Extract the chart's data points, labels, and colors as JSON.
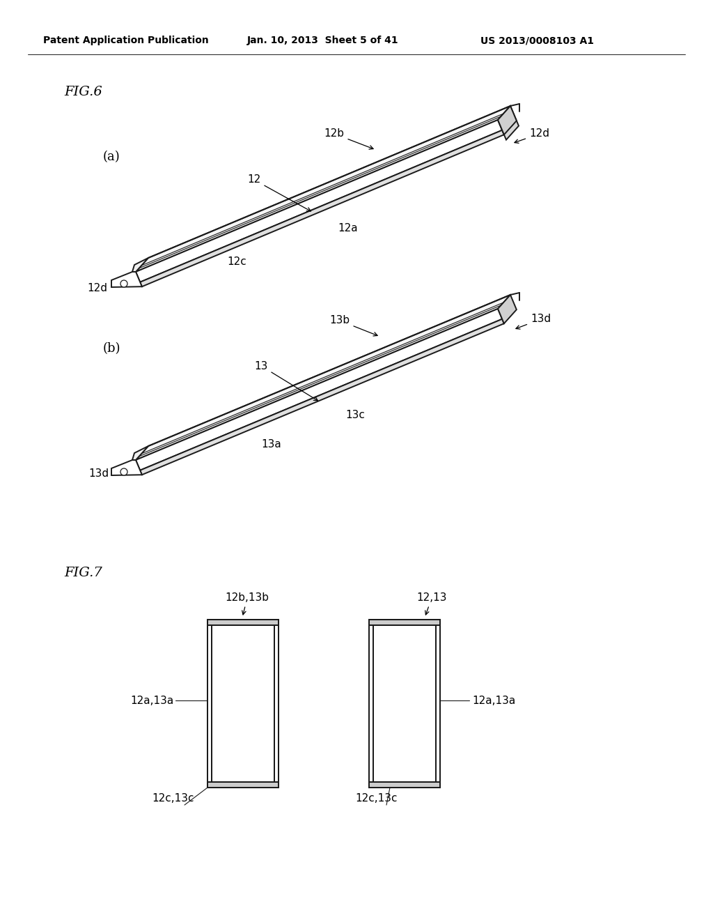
{
  "bg_color": "#ffffff",
  "header_left": "Patent Application Publication",
  "header_mid": "Jan. 10, 2013  Sheet 5 of 41",
  "header_right": "US 2013/0008103 A1",
  "line_color": "#1a1a1a",
  "lw": 1.4
}
